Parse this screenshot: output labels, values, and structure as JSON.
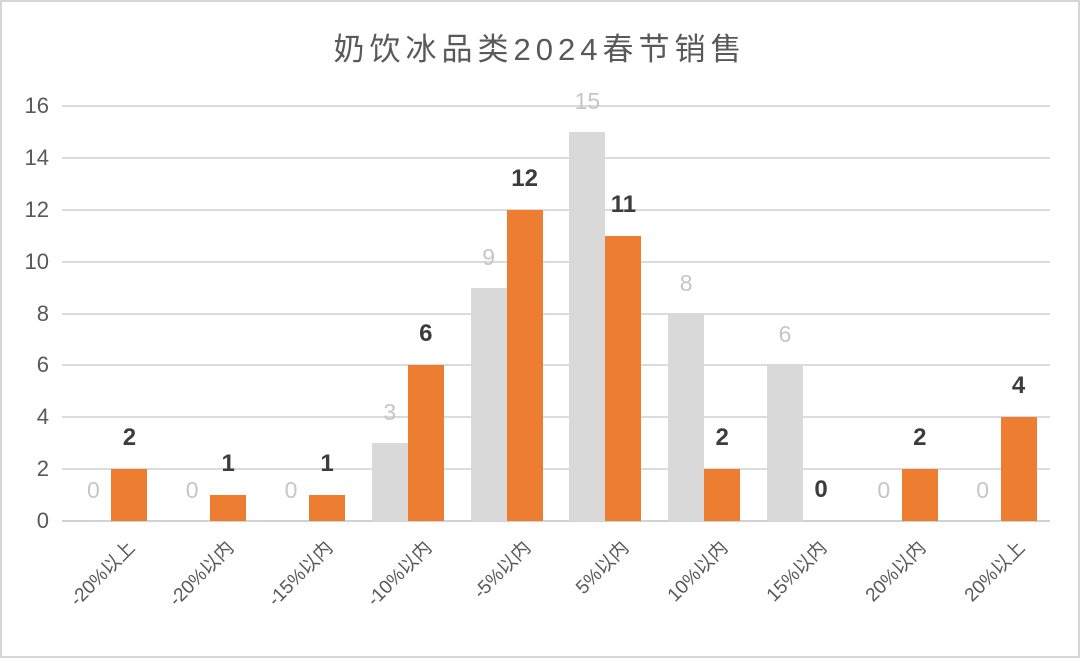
{
  "chart_data": {
    "type": "bar",
    "title": "奶饮冰品类2024春节销售",
    "categories": [
      "-20%以上",
      "-20%以内",
      "-15%以内",
      "-10%以内",
      "-5%以内",
      "5%以内",
      "10%以内",
      "15%以内",
      "20%以内",
      "20%以上"
    ],
    "series": [
      {
        "name": "gray-series",
        "color": "#d9d9d9",
        "label_color": "#c6c6c6",
        "label_bold": false,
        "values": [
          0,
          0,
          0,
          3,
          9,
          15,
          8,
          6,
          0,
          0
        ]
      },
      {
        "name": "orange-series",
        "color": "#ed7d31",
        "label_color": "#3c3c3c",
        "label_bold": true,
        "values": [
          2,
          1,
          1,
          6,
          12,
          11,
          2,
          0,
          2,
          4
        ]
      }
    ],
    "yticks": [
      0,
      2,
      4,
      6,
      8,
      10,
      12,
      14,
      16
    ],
    "ylim": [
      0,
      16
    ],
    "xlabel": "",
    "ylabel": "",
    "grid": true,
    "legend": "none",
    "data_labels": true
  },
  "colors": {
    "background": "#ffffff",
    "frame_border": "#d6d6d6",
    "gridline": "#dcdcdc",
    "baseline": "#d2d2d2",
    "axis_text": "#595959",
    "title_text": "#595959"
  }
}
